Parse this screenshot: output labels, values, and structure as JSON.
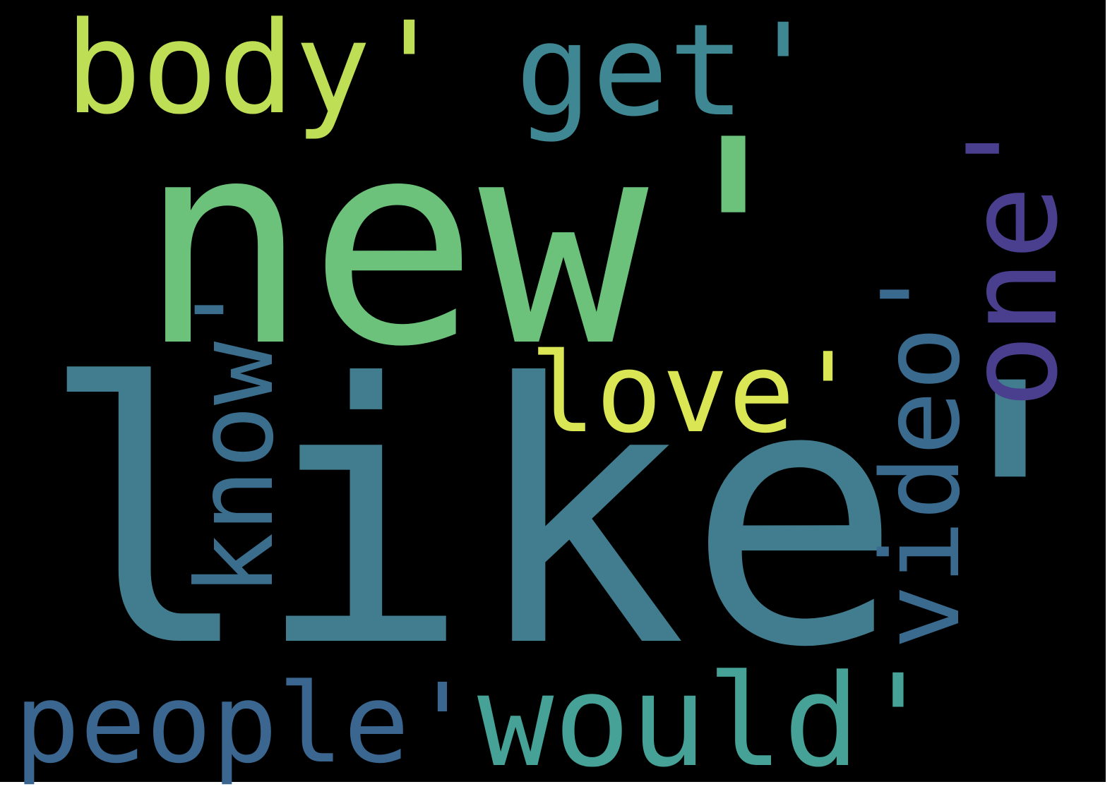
{
  "background_color": "#000000",
  "words": [
    {
      "text": "new'",
      "color": "#6cc27a"
    },
    {
      "text": "like'",
      "color": "#427d8f"
    },
    {
      "text": "body'",
      "color": "#bedf55"
    },
    {
      "text": "get'",
      "color": "#3e8793"
    },
    {
      "text": "one'",
      "color": "#4a3f8e"
    },
    {
      "text": "video'",
      "color": "#3a6b8f"
    },
    {
      "text": "love'",
      "color": "#dbe655"
    },
    {
      "text": "know'",
      "color": "#3b6e8d"
    },
    {
      "text": "people'",
      "color": "#3a6690"
    },
    {
      "text": "would'",
      "color": "#46a297"
    }
  ]
}
